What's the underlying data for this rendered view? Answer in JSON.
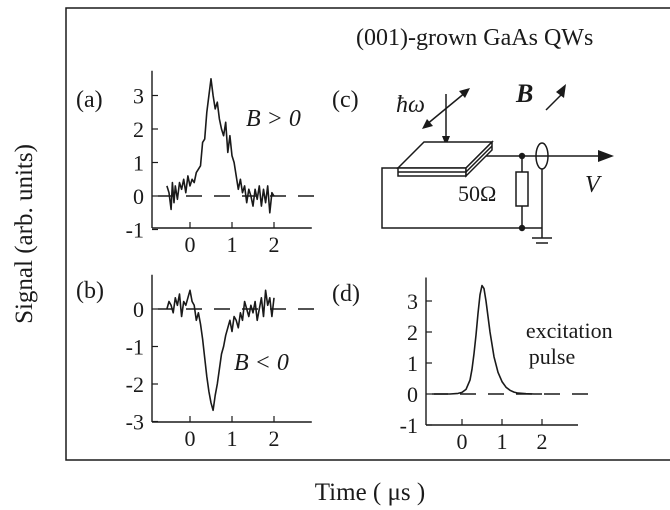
{
  "figure": {
    "header": "(001)-grown GaAs QWs",
    "ylabel": "Signal (arb. units)",
    "xlabel": "Time ( μs )"
  },
  "colors": {
    "ink": "#1a1a1a",
    "background": "#ffffff"
  },
  "chart_data": [
    {
      "type": "line",
      "panel": "(a)",
      "annotation": "B > 0",
      "x_ticks": [
        "0",
        "1",
        "2"
      ],
      "y_ticks": [
        "3",
        "2",
        "1",
        "0",
        "-1"
      ],
      "xlim": [
        -0.9,
        2.9
      ],
      "ylim": [
        -1,
        3.5
      ],
      "baseline": 0,
      "series": [
        {
          "x": [
            -0.55,
            -0.5,
            -0.45,
            -0.42,
            -0.38,
            -0.35,
            -0.3,
            -0.25,
            -0.2,
            -0.15,
            -0.1,
            -0.05,
            0,
            0.05,
            0.1,
            0.15,
            0.2,
            0.25,
            0.3,
            0.35,
            0.4,
            0.45,
            0.5,
            0.55,
            0.6,
            0.65,
            0.7,
            0.75,
            0.8,
            0.85,
            0.9,
            0.95,
            1.0,
            1.05,
            1.1,
            1.15,
            1.2,
            1.25,
            1.3,
            1.35,
            1.4,
            1.45,
            1.5,
            1.55,
            1.6,
            1.65,
            1.7,
            1.75,
            1.8,
            1.85,
            1.9,
            1.95,
            2.0
          ],
          "y": [
            0.3,
            0.1,
            -0.4,
            0.4,
            -0.2,
            0.3,
            -0.1,
            0.4,
            0.2,
            0.5,
            0.1,
            0.6,
            0.3,
            0.5,
            0.4,
            0.7,
            0.8,
            0.9,
            1.6,
            1.7,
            2.5,
            3.0,
            3.5,
            3.0,
            2.6,
            2.8,
            2.3,
            2.0,
            1.8,
            2.2,
            1.3,
            1.8,
            1.2,
            1.0,
            0.6,
            0.2,
            0.5,
            0.1,
            0.3,
            -0.2,
            0.2,
            0.0,
            -0.3,
            0.2,
            -0.1,
            0.3,
            -0.3,
            0.2,
            -0.2,
            0.3,
            -0.5,
            0.1,
            0.0
          ]
        }
      ]
    },
    {
      "type": "line",
      "panel": "(b)",
      "annotation": "B < 0",
      "x_ticks": [
        "0",
        "1",
        "2"
      ],
      "y_ticks": [
        "0",
        "-1",
        "-2",
        "-3"
      ],
      "xlim": [
        -0.9,
        2.9
      ],
      "ylim": [
        -3,
        0.7
      ],
      "baseline": 0,
      "series": [
        {
          "x": [
            -0.55,
            -0.5,
            -0.45,
            -0.4,
            -0.35,
            -0.3,
            -0.25,
            -0.2,
            -0.15,
            -0.1,
            -0.05,
            0,
            0.05,
            0.1,
            0.15,
            0.2,
            0.25,
            0.3,
            0.35,
            0.4,
            0.45,
            0.5,
            0.55,
            0.6,
            0.65,
            0.7,
            0.75,
            0.8,
            0.85,
            0.9,
            0.95,
            1.0,
            1.05,
            1.1,
            1.15,
            1.2,
            1.25,
            1.3,
            1.35,
            1.4,
            1.45,
            1.5,
            1.55,
            1.6,
            1.65,
            1.7,
            1.75,
            1.8,
            1.85,
            1.9,
            1.95,
            2.0
          ],
          "y": [
            0.0,
            0.2,
            0.1,
            -0.1,
            0.3,
            0.1,
            0.4,
            -0.2,
            0.2,
            0.1,
            0.3,
            0.5,
            0.2,
            0.1,
            -0.3,
            -0.1,
            -0.4,
            -0.8,
            -1.3,
            -1.8,
            -2.2,
            -2.5,
            -2.7,
            -2.3,
            -2.0,
            -1.6,
            -1.2,
            -1.0,
            -0.7,
            -0.5,
            -0.3,
            -0.6,
            -0.2,
            -0.3,
            -0.5,
            -0.1,
            -0.3,
            0.2,
            0.0,
            -0.2,
            0.1,
            -0.1,
            0.2,
            -0.3,
            0.0,
            0.3,
            -0.2,
            0.5,
            0.1,
            0.3,
            -0.2,
            0.3
          ]
        }
      ]
    },
    {
      "type": "line",
      "panel": "(d)",
      "annotation": "excitation pulse",
      "x_ticks": [
        "0",
        "1",
        "2"
      ],
      "y_ticks": [
        "3",
        "2",
        "1",
        "0",
        "-1"
      ],
      "xlim": [
        -0.9,
        2.9
      ],
      "ylim": [
        -1,
        3.5
      ],
      "baseline": 0,
      "series": [
        {
          "x": [
            -0.7,
            -0.5,
            -0.3,
            -0.1,
            0.0,
            0.1,
            0.2,
            0.25,
            0.3,
            0.35,
            0.4,
            0.45,
            0.5,
            0.55,
            0.6,
            0.65,
            0.7,
            0.75,
            0.8,
            0.9,
            1.0,
            1.1,
            1.2,
            1.3,
            1.4,
            1.6,
            1.8,
            2.0
          ],
          "y": [
            0.0,
            0.0,
            0.0,
            0.02,
            0.05,
            0.15,
            0.45,
            0.8,
            1.3,
            1.9,
            2.6,
            3.2,
            3.5,
            3.4,
            3.0,
            2.5,
            2.0,
            1.6,
            1.2,
            0.7,
            0.4,
            0.22,
            0.12,
            0.06,
            0.03,
            0.01,
            0.0,
            0.0
          ]
        }
      ]
    }
  ],
  "panel_c": {
    "label": "(c)",
    "photon": "ħω",
    "field": "B",
    "resistor": "50Ω",
    "voltage": "V"
  }
}
